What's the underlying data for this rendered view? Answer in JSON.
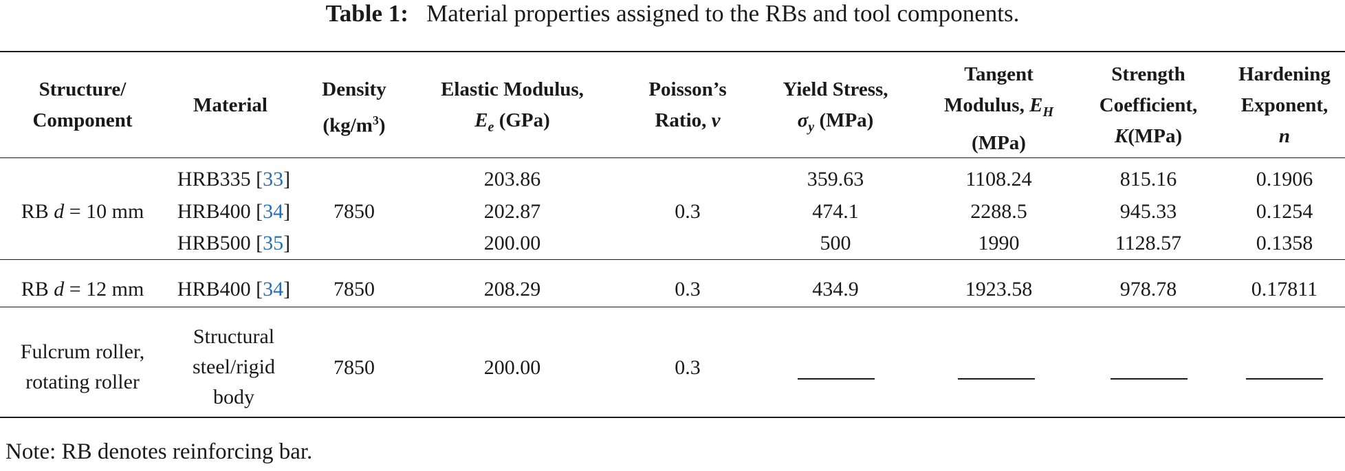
{
  "caption": {
    "label": "Table 1:",
    "text": "Material properties assigned to the RBs and tool components."
  },
  "headers": {
    "structure": [
      "Structure/",
      "Component"
    ],
    "material": "Material",
    "density": [
      "Density",
      "(kg/m",
      "3",
      ")"
    ],
    "elastic": [
      "Elastic Modulus,",
      "E",
      "e",
      " (GPa)"
    ],
    "poisson": [
      "Poisson’s",
      "Ratio, ",
      "ν"
    ],
    "yield": [
      "Yield Stress,",
      "σ",
      "y",
      " (MPa)"
    ],
    "tangent": [
      "Tangent",
      "Modulus, ",
      "E",
      "H",
      "(MPa)"
    ],
    "strength": [
      "Strength",
      "Coefficient,",
      "K",
      "(MPa)"
    ],
    "hardening": [
      "Hardening",
      "Exponent,",
      "n"
    ]
  },
  "group1": {
    "structure_prefix": "RB ",
    "structure_var": "d",
    "structure_suffix": " = 10 mm",
    "density": "7850",
    "poisson": "0.3",
    "rows": [
      {
        "material": "HRB335 [",
        "ref": "33",
        "close": "]",
        "elastic": "203.86",
        "yield": "359.63",
        "tangent": "1108.24",
        "strength": "815.16",
        "hardening": "0.1906"
      },
      {
        "material": "HRB400 [",
        "ref": "34",
        "close": "]",
        "elastic": "202.87",
        "yield": "474.1",
        "tangent": "2288.5",
        "strength": "945.33",
        "hardening": "0.1254"
      },
      {
        "material": "HRB500 [",
        "ref": "35",
        "close": "]",
        "elastic": "200.00",
        "yield": "500",
        "tangent": "1990",
        "strength": "1128.57",
        "hardening": "0.1358"
      }
    ]
  },
  "group2": {
    "structure_prefix": "RB ",
    "structure_var": "d",
    "structure_suffix": " = 12 mm",
    "material": "HRB400 [",
    "ref": "34",
    "close": "]",
    "density": "7850",
    "elastic": "208.29",
    "poisson": "0.3",
    "yield": "434.9",
    "tangent": "1923.58",
    "strength": "978.78",
    "hardening": "0.17811"
  },
  "group3": {
    "structure": [
      "Fulcrum roller,",
      "rotating roller"
    ],
    "material": [
      "Structural",
      "steel/rigid",
      "body"
    ],
    "density": "7850",
    "elastic": "200.00",
    "poisson": "0.3"
  },
  "note": "Note: RB denotes reinforcing bar."
}
